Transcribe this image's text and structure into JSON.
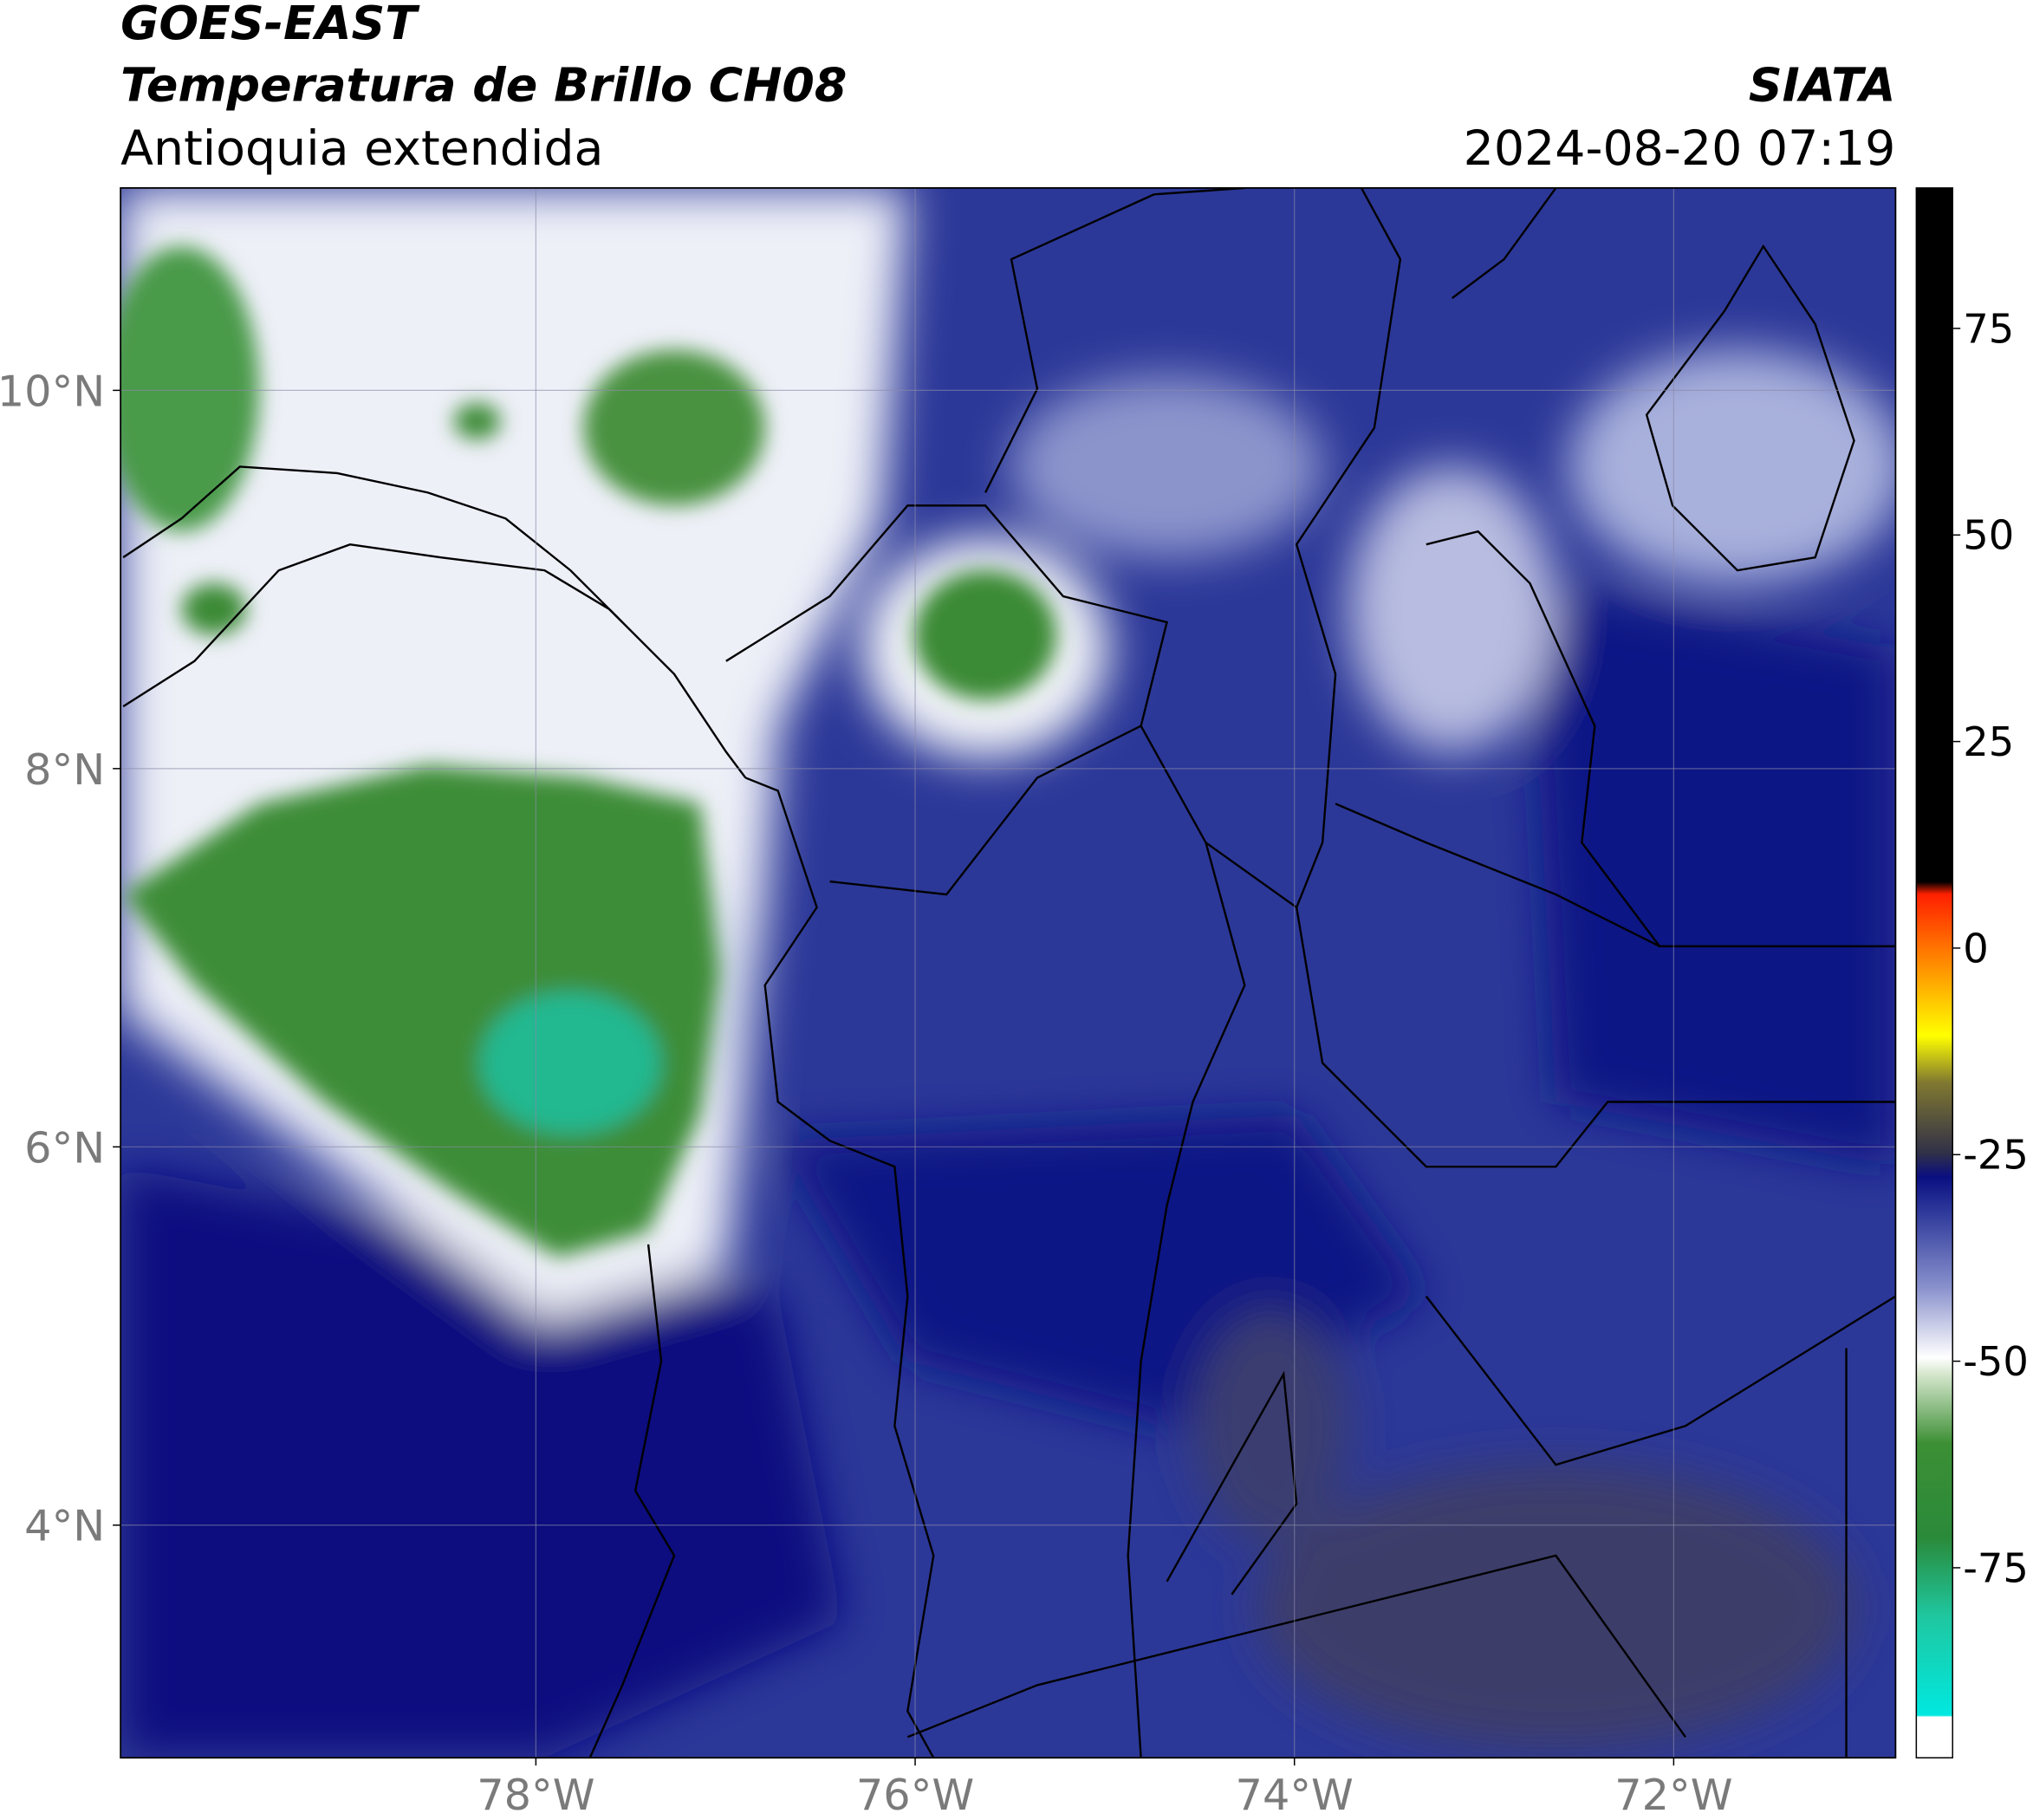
{
  "header": {
    "title": "GOES-EAST",
    "subtitle": "Temperatura de Brillo CH08",
    "region": "Antioquia extendida",
    "source": "SIATA",
    "datetime": "2024-08-20 07:19"
  },
  "map": {
    "xlim": [
      -80.19,
      -70.83
    ],
    "ylim": [
      2.77,
      11.07
    ],
    "grid": true,
    "xticks": [
      {
        "value": -78,
        "label": "78°W"
      },
      {
        "value": -76,
        "label": "76°W"
      },
      {
        "value": -74,
        "label": "74°W"
      },
      {
        "value": -72,
        "label": "72°W"
      }
    ],
    "yticks": [
      {
        "value": 10,
        "label": "10°N"
      },
      {
        "value": 8,
        "label": "8°N"
      },
      {
        "value": 6,
        "label": "6°N"
      },
      {
        "value": 4,
        "label": "4°N"
      }
    ]
  },
  "colorbar": {
    "lim": [
      -98,
      92
    ],
    "ticks": [
      75,
      50,
      25,
      0,
      -25,
      -50,
      -75
    ]
  }
}
